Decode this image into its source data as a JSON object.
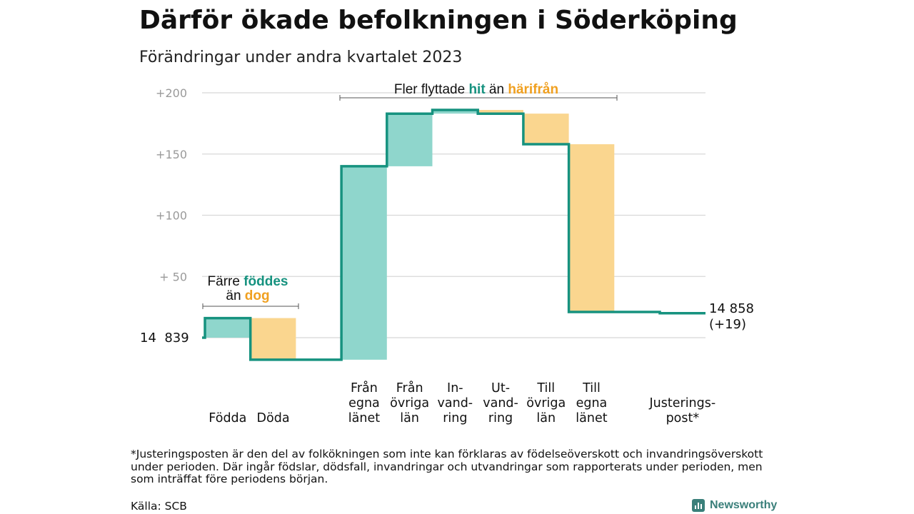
{
  "title": "Därför ökade befolkningen i Söderköping",
  "subtitle": "Förändringar under andra kvartalet 2023",
  "chart_data": {
    "type": "waterfall",
    "ylim": [
      -20,
      200
    ],
    "yticks": [
      {
        "value": 50,
        "label": "+  50"
      },
      {
        "value": 100,
        "label": "+100"
      },
      {
        "value": 150,
        "label": "+150"
      },
      {
        "value": 200,
        "label": "+200"
      }
    ],
    "grid": true,
    "start": {
      "label": "14  839",
      "value": 0
    },
    "end": {
      "label_line1": "14 858",
      "label_line2": "(+19)",
      "value": 19
    },
    "steps": [
      {
        "lines": [
          "Födda"
        ],
        "change": 16,
        "kind": "in"
      },
      {
        "lines": [
          "Döda"
        ],
        "change": -34,
        "kind": "out"
      },
      {
        "lines": [],
        "change": 0,
        "kind": "none"
      },
      {
        "lines": [
          "Från",
          "egna",
          "länet"
        ],
        "change": 158,
        "kind": "in"
      },
      {
        "lines": [
          "Från",
          "övriga",
          "län"
        ],
        "change": 43,
        "kind": "in"
      },
      {
        "lines": [
          "In-",
          "vand-",
          "ring"
        ],
        "change": 3,
        "kind": "in"
      },
      {
        "lines": [
          "Ut-",
          "vand-",
          "ring"
        ],
        "change": -3,
        "kind": "out"
      },
      {
        "lines": [
          "Till",
          "övriga",
          "län"
        ],
        "change": -25,
        "kind": "out"
      },
      {
        "lines": [
          "Till",
          "egna",
          "länet"
        ],
        "change": -137,
        "kind": "out"
      },
      {
        "lines": [],
        "change": 0,
        "kind": "none"
      },
      {
        "lines": [
          "Justerings-",
          "post*"
        ],
        "change": -1,
        "kind": "adjust"
      }
    ],
    "annotations": {
      "birth": {
        "line1_plain": "Färre ",
        "line1_highlight": "föddes",
        "line2_plain": "än ",
        "line2_highlight": "dog"
      },
      "migration": {
        "plain1": "Fler flyttade ",
        "highlight1": "hit",
        "plain2": " än ",
        "highlight2": "härifrån"
      }
    },
    "colors": {
      "line": "#16927f",
      "increase": "#8fd6cc",
      "decrease": "#fad68f",
      "highlight_in": "#16927f",
      "highlight_out": "#f0a020",
      "grid": "#d8d8d8",
      "tick_label": "#9a9a9a"
    }
  },
  "footnote": "*Justeringsposten är den del av folkökningen som inte kan förklaras av födelseöverskott och invandringsöverskott under perioden. Där ingår födslar, dödsfall, invandringar och utvandringar som rapporterats under perioden, men som inträffat före periodens början.",
  "source": "Källa: SCB",
  "logo": {
    "text": "Newsworthy",
    "icon": "newsworthy-logo-icon"
  }
}
